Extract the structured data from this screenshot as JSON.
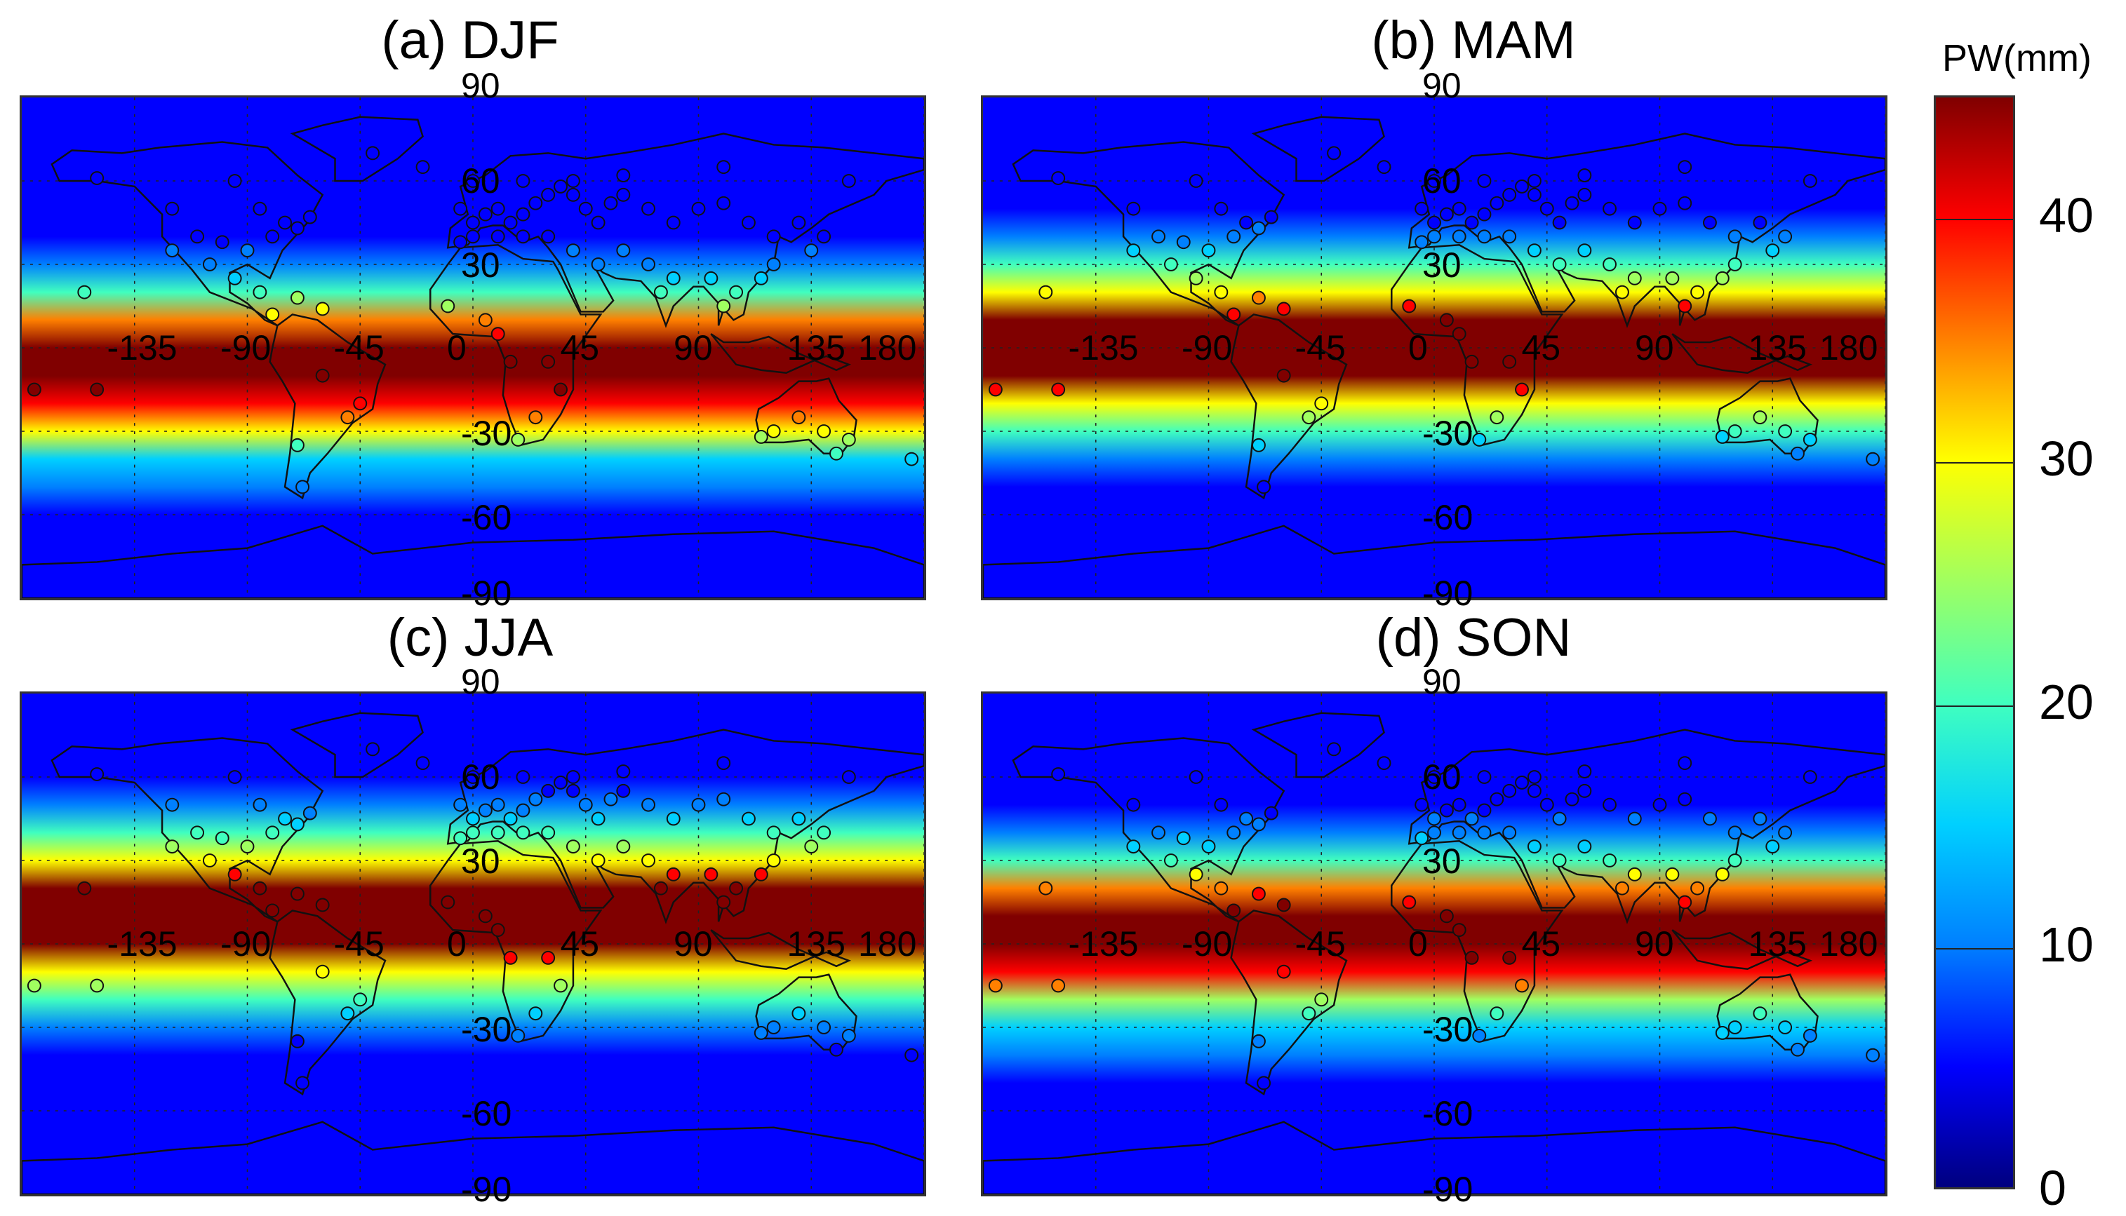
{
  "colorbar": {
    "title": "PW(mm)",
    "ticks": [
      "0",
      "10",
      "20",
      "30",
      "40"
    ],
    "colors": [
      "#00007f",
      "#0000ff",
      "#0080ff",
      "#00d0ff",
      "#40ffbf",
      "#a0ff60",
      "#ffff00",
      "#ff8000",
      "#ff0000",
      "#800000"
    ]
  },
  "lon_labels": [
    "-135",
    "-90",
    "-45",
    "0",
    "45",
    "90",
    "135",
    "180"
  ],
  "lat_labels": [
    "90",
    "60",
    "30",
    "-30",
    "-60",
    "-90"
  ],
  "panels": [
    {
      "id": "a",
      "title": "(a) DJF",
      "season": "DJF",
      "itcz_lat": -8
    },
    {
      "id": "b",
      "title": "(b) MAM",
      "season": "MAM",
      "itcz_lat": 0
    },
    {
      "id": "c",
      "title": "(c) JJA",
      "season": "JJA",
      "itcz_lat": 10
    },
    {
      "id": "d",
      "title": "(d) SON",
      "season": "SON",
      "itcz_lat": 3
    }
  ],
  "map_data": {
    "type": "global precipitable water maps with station markers",
    "projection": "equirectangular",
    "lon_range": [
      -180,
      180
    ],
    "lat_range": [
      -90,
      90
    ],
    "grid_lon": [
      -135,
      -90,
      -45,
      0,
      45,
      90,
      135,
      180
    ],
    "grid_lat": [
      60,
      30,
      0,
      -30,
      -60
    ],
    "value_range": [
      0,
      45
    ],
    "units": "mm"
  }
}
